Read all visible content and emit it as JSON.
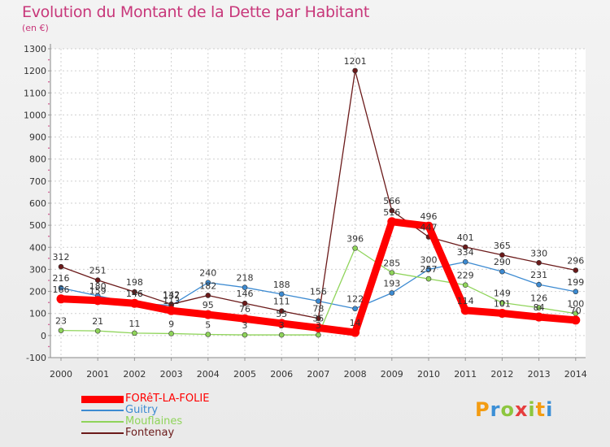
{
  "title": "Evolution du Montant de la Dette par Habitant",
  "subtitle": "(en €)",
  "logo": {
    "letters": [
      "P",
      "r",
      "o",
      "x",
      "i",
      "t",
      "i"
    ],
    "colors": [
      "#f39c12",
      "#3b8fd6",
      "#8dc63f",
      "#e63d3d",
      "#8dc63f",
      "#f39c12",
      "#3b8fd6"
    ]
  },
  "chart_data": {
    "type": "line",
    "title": "Evolution du Montant de la Dette par Habitant",
    "ylabel": "(en €)",
    "xlabel": "",
    "x": [
      "2000",
      "2001",
      "2002",
      "2003",
      "2004",
      "2005",
      "2006",
      "2007",
      "2008",
      "2009",
      "2010",
      "2011",
      "2012",
      "2013",
      "2014"
    ],
    "ylim": [
      -100,
      1300
    ],
    "yticks": [
      "-100",
      "0",
      "100",
      "200",
      "300",
      "400",
      "500",
      "600",
      "700",
      "800",
      "900",
      "1000",
      "1100",
      "1200",
      "1300"
    ],
    "grid": true,
    "legend_position": "bottom-left",
    "series": [
      {
        "name": "FORêT-LA-FOLIE",
        "color": "#ff0000",
        "values": [
          166,
          159,
          146,
          113,
          95,
          76,
          55,
          35,
          14,
          516,
          496,
          114,
          101,
          84,
          70
        ],
        "labels": [
          "166",
          "159",
          "146",
          "113",
          "95",
          "76",
          "55",
          "35",
          "14",
          "516",
          "496",
          "114",
          "101",
          "84",
          "70"
        ]
      },
      {
        "name": "Guitry",
        "color": "#3d8bd2",
        "values": [
          216,
          180,
          146,
          137,
          240,
          218,
          188,
          156,
          122,
          193,
          300,
          334,
          290,
          231,
          199
        ],
        "labels": [
          "216",
          "180",
          "146",
          "137",
          "240",
          "218",
          "188",
          "156",
          "122",
          "193",
          "300",
          "334",
          "290",
          "231",
          "199"
        ]
      },
      {
        "name": "Mouflaines",
        "color": "#8fd45a",
        "values": [
          23,
          21,
          11,
          9,
          5,
          3,
          3,
          3,
          396,
          285,
          257,
          229,
          149,
          126,
          100
        ],
        "labels": [
          "23",
          "21",
          "11",
          "9",
          "5",
          "3",
          "3",
          "3",
          "396",
          "285",
          "257",
          "229",
          "149",
          "126",
          "100"
        ]
      },
      {
        "name": "Fontenay",
        "color": "#6b1a1a",
        "values": [
          312,
          251,
          198,
          142,
          182,
          146,
          111,
          78,
          1201,
          566,
          447,
          401,
          365,
          330,
          296
        ],
        "labels": [
          "312",
          "251",
          "198",
          "142",
          "182",
          "146",
          "111",
          "78",
          "1201",
          "566",
          "447",
          "401",
          "365",
          "330",
          "296"
        ]
      }
    ]
  }
}
